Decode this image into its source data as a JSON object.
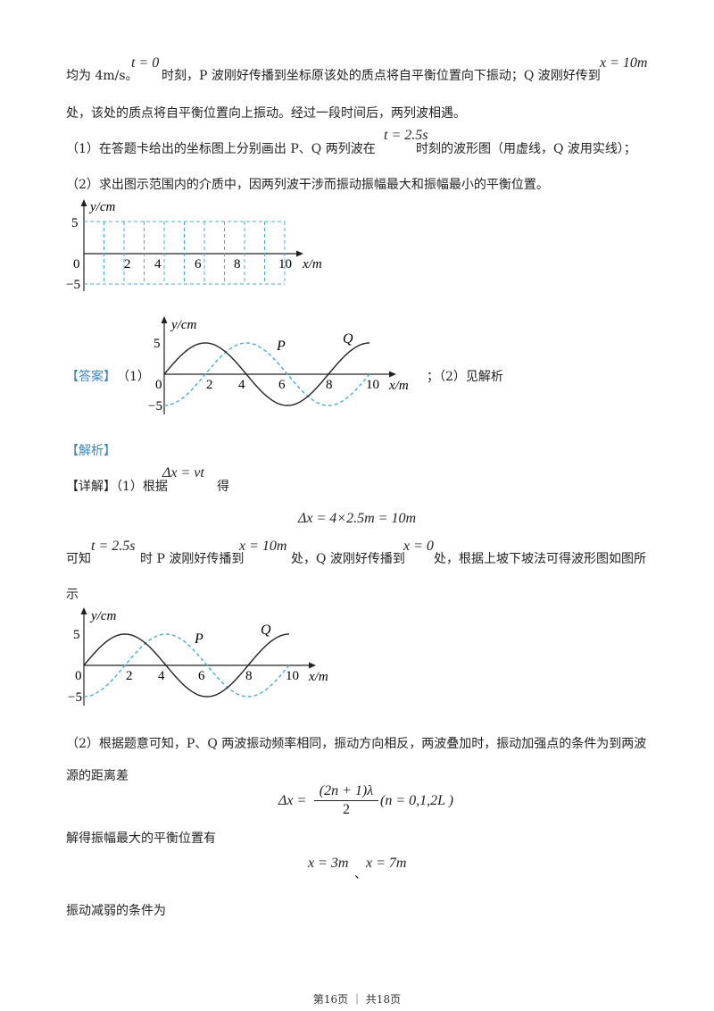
{
  "lines": {
    "l1_a": "均为 4m/s。",
    "l1_t0": "t = 0",
    "l1_b": "时刻，P 波刚好传播到坐标原该处的质点将自平衡位置向下振动；Q 波刚好传到",
    "l1_x10": "x = 10m",
    "l2": "处，该处的质点将自平衡位置向上振动。经过一段时间后，两列波相遇。",
    "l3_a": "（1）在答题卡给出的坐标图上分别画出 P、Q 两列波在",
    "l3_t": "t = 2.5s",
    "l3_b": "时刻的波形图（用虚线，Q 波用实线）；",
    "l4": "（2）求出图示范围内的介质中，因两列波干涉而振动振幅最大和振幅最小的平衡位置。",
    "answer_tag": "【答案】",
    "answer_1": "（1）",
    "answer_2": "；（2）见解析",
    "analysis_tag": "【解析】",
    "detail_a": "【详解】（1）根据",
    "detail_formula": "Δx = vt",
    "detail_b": "得",
    "eq1": "Δx = 4×2.5m = 10m",
    "know_a": "可知",
    "know_t": "t = 2.5s",
    "know_b": "时 P 波刚好传播到",
    "know_x10": "x = 10m",
    "know_c": "处，Q 波刚好传播到",
    "know_x0": "x = 0",
    "know_d": "处，根据上坡下坡法可得波形图如图所",
    "know_e": "示",
    "p2_a": "（2）根据题意可知，P、Q 两波振动频率相同，振动方向相反，两波叠加时，振动加强点的条件为到两波",
    "p2_b": "源的距离差",
    "eq2_left": "Δx =",
    "eq2_num": "(2n + 1)λ",
    "eq2_den": "2",
    "eq2_right": "(n = 0,1,2L )",
    "max_text": "解得振幅最大的平衡位置有",
    "eq3_a": "x = 3m",
    "eq3_sep": "、",
    "eq3_b": "x = 7m",
    "weak_text": "振动减弱的条件为",
    "footer": "第16页 ｜ 共18页"
  },
  "graphs": {
    "y_label": "y/cm",
    "x_label": "x/m",
    "y_ticks": [
      "5",
      "0",
      "−5"
    ],
    "x_ticks": [
      "2",
      "4",
      "6",
      "8",
      "10"
    ],
    "label_P": "P",
    "label_Q": "Q",
    "colors": {
      "dashed_wave": "#3bb3e0",
      "solid_wave": "#222222",
      "grid": "#3bb3e0"
    }
  }
}
